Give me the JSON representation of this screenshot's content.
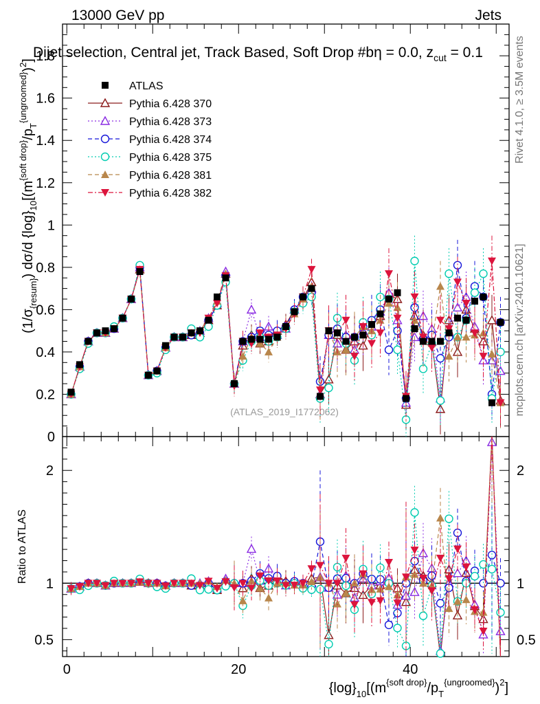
{
  "header": {
    "beam": "13000 GeV pp",
    "group": "Jets",
    "selection": "Dijet selection, Central jet, Track Based, Soft Drop #b",
    "params": "η = 0.0, z",
    "params_sub": "cut",
    "params_tail": " = 0.1",
    "rivet": "Rivet 4.1.0, ≥ 3.5M events",
    "mcplots": "mcplots.cern.ch [arXiv:2401.10621]",
    "watermark": "(ATLAS_2019_I1772062)"
  },
  "axes": {
    "ylabel_main": "(1/σ_{resum}) dσ/d {log}_10[(m^{soft drop}/p_T^{ungroomed})^2]",
    "ylabel_ratio": "Ratio to ATLAS",
    "xlabel": "{log}_10[(m^{soft drop}/p_T^{ungroomed})^2]"
  },
  "chart_data": {
    "type": "scatter",
    "title": "Dijet selection, Central jet, Track Based, Soft Drop #b η = 0.0, z_cut = 0.1",
    "xlim": [
      -0.5,
      51.5
    ],
    "ylim_main": [
      0,
      1.95
    ],
    "ylim_ratio": [
      0.35,
      2.3
    ],
    "xticks": [
      0,
      20,
      40
    ],
    "yticks_main": [
      0,
      0.2,
      0.4,
      0.6,
      0.8,
      1,
      1.2,
      1.4,
      1.6,
      1.8
    ],
    "ytick_labels_main": [
      "0",
      "0.2",
      "0.4",
      "0.6",
      "0.8",
      "1",
      "1.2",
      "1.4",
      "1.6",
      "1.8"
    ],
    "yticks_ratio": [
      0.5,
      1,
      2
    ],
    "ytick_labels_ratio": [
      "0.5",
      "1",
      "2"
    ],
    "x": [
      0.5,
      1.5,
      2.5,
      3.5,
      4.5,
      5.5,
      6.5,
      7.5,
      8.5,
      9.5,
      10.5,
      11.5,
      12.5,
      13.5,
      14.5,
      15.5,
      16.5,
      17.5,
      18.5,
      19.5,
      20.5,
      21.5,
      22.5,
      23.5,
      24.5,
      25.5,
      26.5,
      27.5,
      28.5,
      29.5,
      30.5,
      31.5,
      32.5,
      33.5,
      34.5,
      35.5,
      36.5,
      37.5,
      38.5,
      39.5,
      40.5,
      41.5,
      42.5,
      43.5,
      44.5,
      45.5,
      46.5,
      47.5,
      48.5,
      49.5,
      50.5
    ],
    "series": [
      {
        "name": "ATLAS",
        "style": "data",
        "color": "#000000",
        "values": [
          0.21,
          0.34,
          0.45,
          0.49,
          0.5,
          0.51,
          0.56,
          0.65,
          0.78,
          0.29,
          0.31,
          0.43,
          0.47,
          0.47,
          0.49,
          0.5,
          0.55,
          0.66,
          0.75,
          0.25,
          0.45,
          0.46,
          0.46,
          0.46,
          0.47,
          0.52,
          0.59,
          0.66,
          0.7,
          0.19,
          0.5,
          0.49,
          0.45,
          0.47,
          0.48,
          0.53,
          0.58,
          0.65,
          0.68,
          0.18,
          0.51,
          0.45,
          0.45,
          0.45,
          0.49,
          0.56,
          0.55,
          0.64,
          0.66,
          0.16,
          0.54
        ]
      },
      {
        "name": "Pythia 6.428 370",
        "style": "line",
        "color": "#8b1a1a",
        "values": [
          0.2,
          0.33,
          0.45,
          0.49,
          0.49,
          0.51,
          0.56,
          0.65,
          0.79,
          0.29,
          0.31,
          0.42,
          0.47,
          0.47,
          0.48,
          0.49,
          0.55,
          0.62,
          0.77,
          0.25,
          0.43,
          0.48,
          0.44,
          0.45,
          0.5,
          0.53,
          0.6,
          0.65,
          0.73,
          0.2,
          0.27,
          0.48,
          0.41,
          0.45,
          0.43,
          0.52,
          0.57,
          0.67,
          0.65,
          0.15,
          0.57,
          0.48,
          0.45,
          0.13,
          0.55,
          0.4,
          0.6,
          0.51,
          0.45,
          0.55,
          0.17
        ]
      },
      {
        "name": "Pythia 6.428 373",
        "style": "dotted",
        "color": "#8a2be2",
        "values": [
          0.2,
          0.33,
          0.45,
          0.49,
          0.49,
          0.51,
          0.56,
          0.65,
          0.8,
          0.29,
          0.31,
          0.42,
          0.47,
          0.47,
          0.49,
          0.5,
          0.56,
          0.63,
          0.78,
          0.25,
          0.45,
          0.6,
          0.47,
          0.52,
          0.48,
          0.51,
          0.6,
          0.65,
          0.7,
          0.2,
          0.48,
          0.44,
          0.48,
          0.41,
          0.5,
          0.52,
          0.59,
          0.68,
          0.55,
          0.16,
          0.47,
          0.57,
          0.51,
          0.18,
          0.49,
          0.61,
          0.66,
          0.52,
          0.36,
          0.36,
          0.31
        ]
      },
      {
        "name": "Pythia 6.428 374",
        "style": "dashed",
        "color": "#1515d9",
        "values": [
          0.2,
          0.33,
          0.45,
          0.49,
          0.49,
          0.51,
          0.56,
          0.65,
          0.8,
          0.29,
          0.31,
          0.42,
          0.47,
          0.47,
          0.48,
          0.49,
          0.55,
          0.62,
          0.76,
          0.25,
          0.45,
          0.47,
          0.5,
          0.48,
          0.5,
          0.52,
          0.6,
          0.66,
          0.68,
          0.26,
          0.48,
          0.51,
          0.47,
          0.47,
          0.52,
          0.55,
          0.6,
          0.41,
          0.5,
          0.18,
          0.61,
          0.46,
          0.48,
          0.37,
          0.47,
          0.81,
          0.56,
          0.71,
          0.66,
          0.2,
          0.54
        ]
      },
      {
        "name": "Pythia 6.428 375",
        "style": "dotted",
        "color": "#00ccb0",
        "values": [
          0.2,
          0.32,
          0.44,
          0.49,
          0.49,
          0.52,
          0.56,
          0.65,
          0.81,
          0.29,
          0.3,
          0.41,
          0.47,
          0.47,
          0.51,
          0.47,
          0.52,
          0.62,
          0.73,
          0.25,
          0.36,
          0.45,
          0.47,
          0.45,
          0.47,
          0.51,
          0.59,
          0.63,
          0.66,
          0.18,
          0.23,
          0.56,
          0.44,
          0.36,
          0.54,
          0.48,
          0.66,
          0.65,
          0.41,
          0.08,
          0.83,
          0.32,
          0.44,
          0.17,
          0.77,
          0.47,
          0.55,
          0.68,
          0.77,
          0.18,
          0.4
        ]
      },
      {
        "name": "Pythia 6.428 381",
        "style": "dashed",
        "color": "#b8864b",
        "values": [
          0.2,
          0.33,
          0.45,
          0.49,
          0.49,
          0.51,
          0.56,
          0.65,
          0.79,
          0.29,
          0.31,
          0.42,
          0.47,
          0.47,
          0.49,
          0.5,
          0.56,
          0.64,
          0.77,
          0.25,
          0.38,
          0.47,
          0.44,
          0.4,
          0.47,
          0.52,
          0.58,
          0.65,
          0.71,
          0.2,
          0.5,
          0.4,
          0.41,
          0.47,
          0.52,
          0.5,
          0.55,
          0.63,
          0.61,
          0.19,
          0.55,
          0.45,
          0.44,
          0.71,
          0.38,
          0.47,
          0.47,
          0.48,
          0.49,
          0.39,
          0.16
        ]
      },
      {
        "name": "Pythia 6.428 382",
        "style": "dashdot",
        "color": "#dc143c",
        "values": [
          0.2,
          0.33,
          0.45,
          0.49,
          0.49,
          0.51,
          0.56,
          0.65,
          0.79,
          0.29,
          0.31,
          0.42,
          0.47,
          0.47,
          0.49,
          0.49,
          0.56,
          0.63,
          0.76,
          0.24,
          0.45,
          0.44,
          0.49,
          0.47,
          0.48,
          0.51,
          0.58,
          0.66,
          0.79,
          0.22,
          0.5,
          0.49,
          0.55,
          0.38,
          0.52,
          0.44,
          0.49,
          0.77,
          0.56,
          0.19,
          0.66,
          0.47,
          0.42,
          0.55,
          0.51,
          0.73,
          0.63,
          0.49,
          0.38,
          0.83,
          0.16
        ]
      }
    ]
  }
}
